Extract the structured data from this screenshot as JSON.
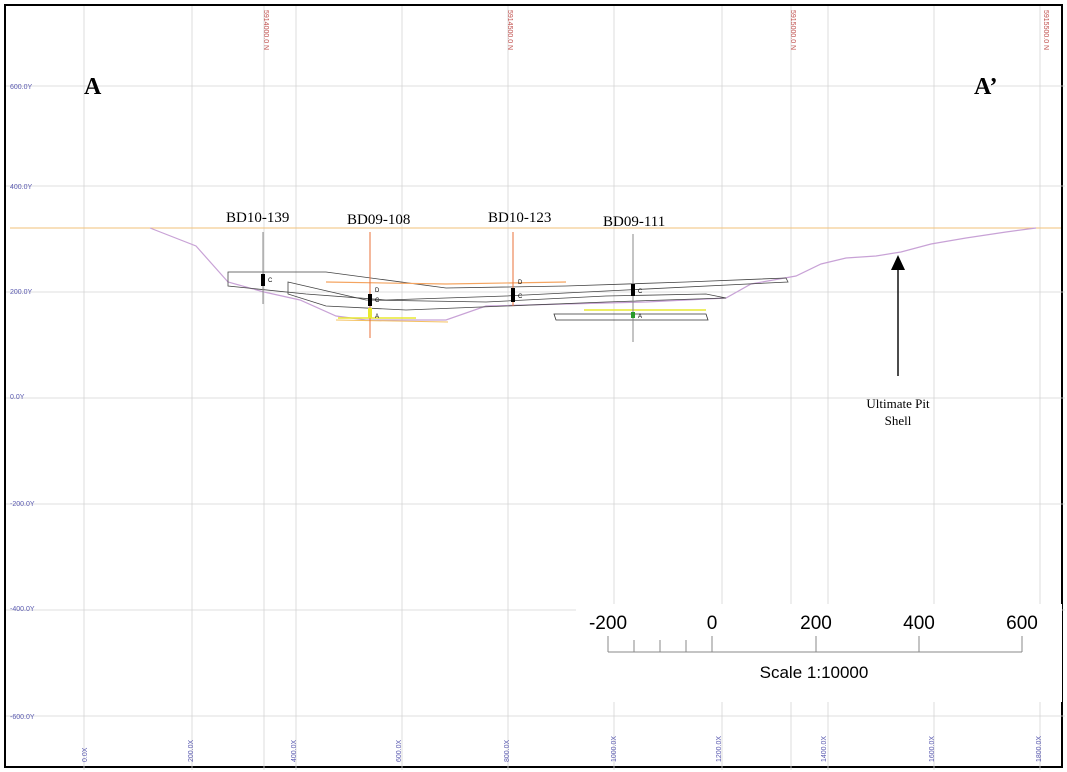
{
  "section": {
    "start_label": "A",
    "end_label": "A’"
  },
  "northings": [
    "5914000.0 N",
    "5914500.0 N",
    "5915000.0 N",
    "5915500.0 N"
  ],
  "elevation_labels": [
    "600.0Y",
    "400.0Y",
    "200.0Y",
    "0.0Y",
    "-200.0Y",
    "-400.0Y",
    "-600.0Y"
  ],
  "distance_labels": [
    "0.0X",
    "200.0X",
    "400.0X",
    "600.0X",
    "800.0X",
    "1000.0X",
    "1200.0X",
    "1400.0X",
    "1600.0X",
    "1800.0X"
  ],
  "drillholes": [
    {
      "name": "BD10-139",
      "units": [
        "C"
      ]
    },
    {
      "name": "BD09-108",
      "units": [
        "D",
        "C",
        "A"
      ]
    },
    {
      "name": "BD10-123",
      "units": [
        "D",
        "C"
      ]
    },
    {
      "name": "BD09-111",
      "units": [
        "C",
        "A"
      ]
    }
  ],
  "annotation": {
    "line1": "Ultimate Pit",
    "line2": "Shell"
  },
  "scale_bar": {
    "ticks": [
      "-200",
      "0",
      "200",
      "400",
      "600"
    ],
    "title": "Scale 1:10000"
  },
  "colors": {
    "grid": "#d4d4d4",
    "axis_text": "#5a5ab0",
    "northing_text": "#c0504d",
    "topography": "#f2c27a",
    "pit_shell": "#c8a2d6",
    "unit_d": "#f4a460",
    "unit_a": "#e8e830",
    "seam": "#444444"
  }
}
